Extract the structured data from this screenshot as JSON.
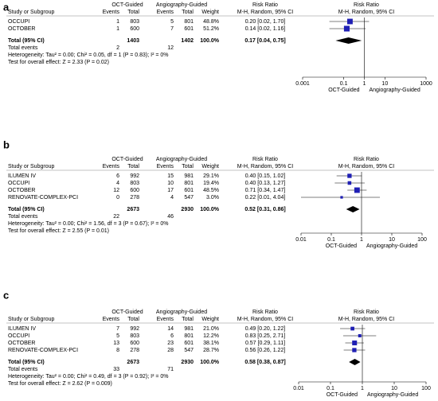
{
  "chart_data": [
    {
      "type": "forest",
      "panel_label": "a",
      "group_headers": [
        "OCT-Guided",
        "Angiography-Guided",
        "Risk Ratio",
        "Risk Ratio"
      ],
      "columns": [
        "Study or Subgroup",
        "Events",
        "Total",
        "Events",
        "Total",
        "Weight",
        "M-H, Random, 95% CI",
        "M-H, Random, 95% CI"
      ],
      "studies": [
        "OCCUPI",
        "OCTOBER"
      ],
      "oct_events": [
        1,
        1
      ],
      "oct_total": [
        803,
        600
      ],
      "angio_events": [
        5,
        7
      ],
      "angio_total": [
        801,
        601
      ],
      "weights": [
        48.8,
        51.2
      ],
      "weight_labels": [
        "48.8%",
        "51.2%"
      ],
      "rr": [
        0.2,
        0.14
      ],
      "ci_low": [
        0.02,
        0.02
      ],
      "ci_high": [
        1.7,
        1.16
      ],
      "rr_labels": [
        "0.20 [0.02, 1.70]",
        "0.14 [0.02, 1.16]"
      ],
      "total_label": "Total (95% CI)",
      "total_oct": 1403,
      "total_angio": 1402,
      "total_weight": 100.0,
      "total_weight_label": "100.0%",
      "pooled_rr": 0.17,
      "pooled_low": 0.04,
      "pooled_high": 0.75,
      "pooled_label": "0.17 [0.04, 0.75]",
      "events_label": "Total events",
      "events_oct": 2,
      "events_angio": 12,
      "heterogeneity": "Heterogeneity: Tau² = 0.00; Chi² = 0.05, df = 1 (P = 0.83); I² = 0%",
      "overall_test": "Test for overall effect: Z = 2.33 (P = 0.02)",
      "log_x": true,
      "xlim": [
        0.001,
        1000
      ],
      "xticks": [
        0.001,
        0.1,
        1,
        10,
        1000
      ],
      "axis_labels": [
        "OCT-Guided",
        "Angiography-Guided"
      ],
      "color": "#1f1fb4"
    },
    {
      "type": "forest",
      "panel_label": "b",
      "group_headers": [
        "OCT-Guided",
        "Angiography-Guided",
        "Risk Ratio",
        "Risk Ratio"
      ],
      "columns": [
        "Study or Subgroup",
        "Events",
        "Total",
        "Events",
        "Total",
        "Weight",
        "M-H, Random, 95% CI",
        "M-H, Random, 95% CI"
      ],
      "studies": [
        "ILUMEN IV",
        "OCCUPI",
        "OCTOBER",
        "RENOVATE-COMPLEX-PCI"
      ],
      "oct_events": [
        6,
        4,
        12,
        0
      ],
      "oct_total": [
        992,
        803,
        600,
        278
      ],
      "angio_events": [
        15,
        10,
        17,
        4
      ],
      "angio_total": [
        981,
        801,
        601,
        547
      ],
      "weights": [
        29.1,
        19.4,
        48.5,
        3.0
      ],
      "weight_labels": [
        "29.1%",
        "19.4%",
        "48.5%",
        "3.0%"
      ],
      "rr": [
        0.4,
        0.4,
        0.71,
        0.22
      ],
      "ci_low": [
        0.15,
        0.13,
        0.34,
        0.01
      ],
      "ci_high": [
        1.02,
        1.27,
        1.47,
        4.04
      ],
      "rr_labels": [
        "0.40 [0.15, 1.02]",
        "0.40 [0.13, 1.27]",
        "0.71 [0.34, 1.47]",
        "0.22 [0.01, 4.04]"
      ],
      "total_label": "Total (95% CI)",
      "total_oct": 2673,
      "total_angio": 2930,
      "total_weight": 100.0,
      "total_weight_label": "100.0%",
      "pooled_rr": 0.52,
      "pooled_low": 0.31,
      "pooled_high": 0.86,
      "pooled_label": "0.52 [0.31, 0.86]",
      "events_label": "Total events",
      "events_oct": 22,
      "events_angio": 46,
      "heterogeneity": "Heterogeneity: Tau² = 0.00; Chi² = 1.56, df = 3 (P = 0.67); I² = 0%",
      "overall_test": "Test for overall effect: Z = 2.55 (P = 0.01)",
      "log_x": true,
      "xlim": [
        0.01,
        100
      ],
      "xticks": [
        0.01,
        0.1,
        1,
        10,
        100
      ],
      "axis_labels": [
        "OCT-Guided",
        "Angiography-Guided"
      ],
      "color": "#1f1fb4"
    },
    {
      "type": "forest",
      "panel_label": "c",
      "group_headers": [
        "OCT-Guided",
        "Angiography-Guided",
        "Risk Ratio",
        "Risk Ratio"
      ],
      "columns": [
        "Study or Subgroup",
        "Events",
        "Total",
        "Events",
        "Total",
        "Weight",
        "M-H, Random, 95% CI",
        "M-H, Random, 95% CI"
      ],
      "studies": [
        "ILUMEN IV",
        "OCCUPI",
        "OCTOBER",
        "RENOVATE-COMPLEX-PCI"
      ],
      "oct_events": [
        7,
        5,
        13,
        8
      ],
      "oct_total": [
        992,
        803,
        600,
        278
      ],
      "angio_events": [
        14,
        6,
        23,
        28
      ],
      "angio_total": [
        981,
        801,
        601,
        547
      ],
      "weights": [
        21.0,
        12.2,
        38.1,
        28.7
      ],
      "weight_labels": [
        "21.0%",
        "12.2%",
        "38.1%",
        "28.7%"
      ],
      "rr": [
        0.49,
        0.83,
        0.57,
        0.56
      ],
      "ci_low": [
        0.2,
        0.25,
        0.29,
        0.26
      ],
      "ci_high": [
        1.22,
        2.71,
        1.11,
        1.22
      ],
      "rr_labels": [
        "0.49 [0.20, 1.22]",
        "0.83 [0.25, 2.71]",
        "0.57 [0.29, 1.11]",
        "0.56 [0.26, 1.22]"
      ],
      "total_label": "Total (95% CI)",
      "total_oct": 2673,
      "total_angio": 2930,
      "total_weight": 100.0,
      "total_weight_label": "100.0%",
      "pooled_rr": 0.58,
      "pooled_low": 0.38,
      "pooled_high": 0.87,
      "pooled_label": "0.58 [0.38, 0.87]",
      "events_label": "Total events",
      "events_oct": 33,
      "events_angio": 71,
      "heterogeneity": "Heterogeneity: Tau² = 0.00; Chi² = 0.49, df = 3 (P = 0.92); I² = 0%",
      "overall_test": "Test for overall effect: Z = 2.62 (P = 0.009)",
      "log_x": true,
      "xlim": [
        0.01,
        100
      ],
      "xticks": [
        0.01,
        0.1,
        1,
        10,
        100
      ],
      "axis_labels": [
        "OCT-Guided",
        "Angiography-Guided"
      ],
      "color": "#1f1fb4"
    }
  ]
}
